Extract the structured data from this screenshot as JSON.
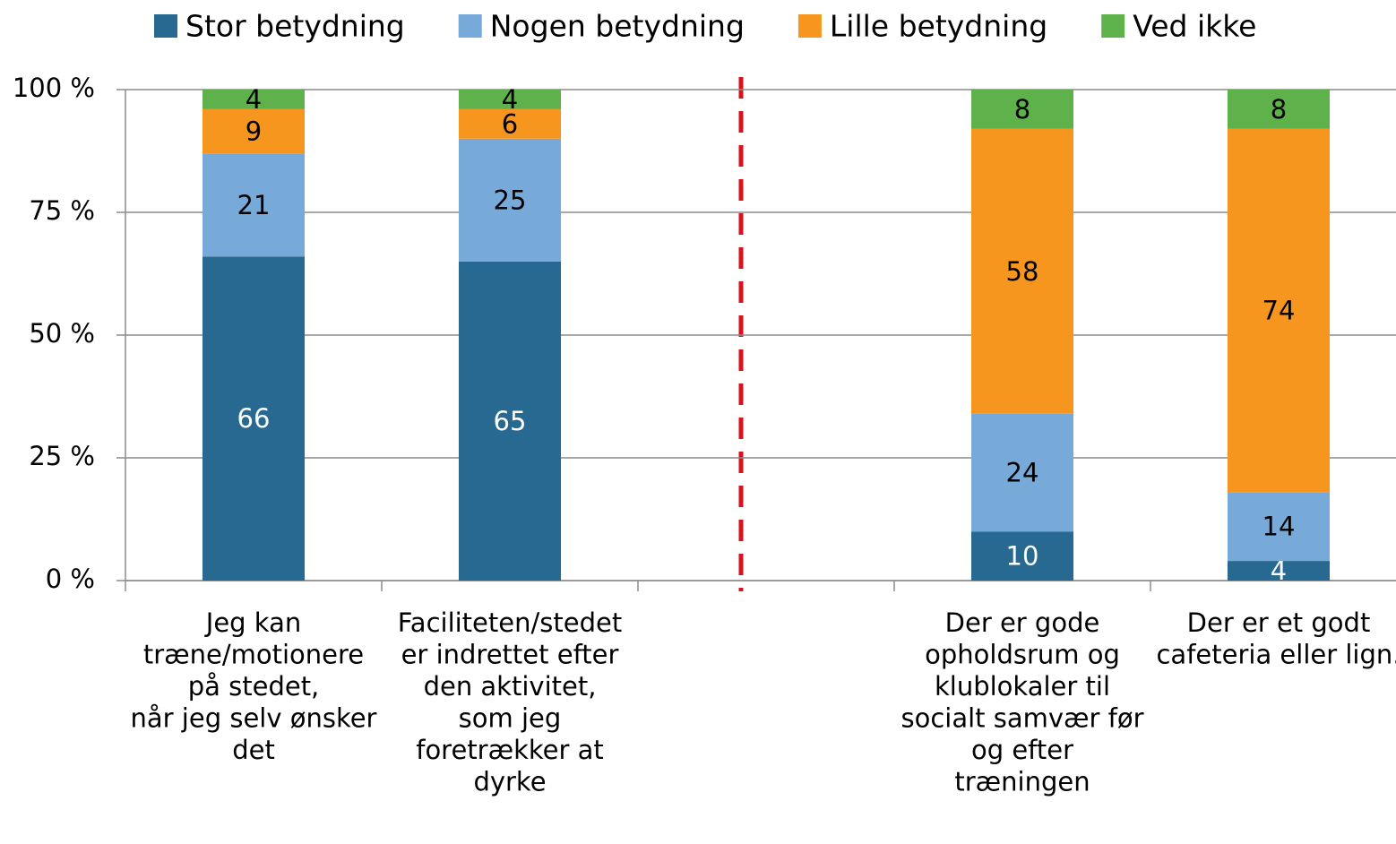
{
  "chart_data": {
    "type": "stacked_bar",
    "categories": [
      "Jeg kan\ntræne/motionere\npå stedet,\nnår jeg selv ønsker\ndet",
      "Faciliteten/stedet\ner indrettet efter\nden aktivitet,\nsom jeg\nforetrækker at\ndyrke",
      null,
      "Der er gode\nopholdsrum og\nklublokaler til\nsocialt samvær før\nog efter\ntræningen",
      "Der er et godt\ncafeteria eller lign."
    ],
    "series": [
      {
        "name": "Stor betydning",
        "color": "#286991",
        "label_color": "#ffffff",
        "values": [
          66,
          65,
          null,
          10,
          4
        ]
      },
      {
        "name": "Nogen betydning",
        "color": "#77aad8",
        "label_color": "#000000",
        "values": [
          21,
          25,
          null,
          24,
          14
        ]
      },
      {
        "name": "Lille betydning",
        "color": "#f7961e",
        "label_color": "#000000",
        "values": [
          9,
          6,
          null,
          58,
          74
        ]
      },
      {
        "name": "Ved ikke",
        "color": "#5fb14b",
        "label_color": "#000000",
        "values": [
          4,
          4,
          null,
          8,
          8
        ]
      }
    ],
    "ylim": [
      0,
      100
    ],
    "yticks": [
      {
        "value": 0,
        "label": "0 %"
      },
      {
        "value": 25,
        "label": "25 %"
      },
      {
        "value": 50,
        "label": "50 %"
      },
      {
        "value": 75,
        "label": "75 %"
      },
      {
        "value": 100,
        "label": "100 %"
      }
    ],
    "grid": true,
    "legend": "top"
  }
}
